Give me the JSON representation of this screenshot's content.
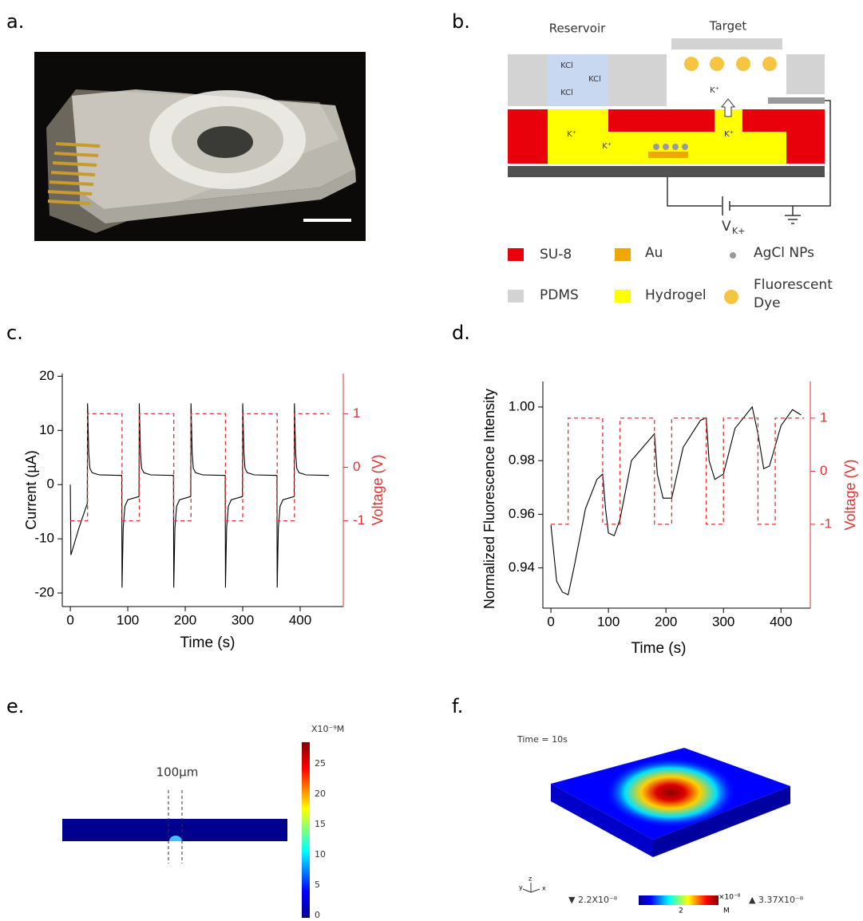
{
  "panel_labels": [
    "a.",
    "b.",
    "c.",
    "d.",
    "e.",
    "f."
  ],
  "diagram": {
    "reservoir": "Reservoir",
    "target": "Target",
    "kcl": [
      "KCl",
      "KCl",
      "KCl"
    ],
    "k_ions": [
      "K⁺",
      "K⁺",
      "K⁺",
      "K⁺"
    ],
    "voltage_symbol": "V",
    "voltage_subscript": "K+",
    "legend": [
      {
        "label": "SU-8",
        "color": "#e8000b"
      },
      {
        "label": "Au",
        "color": "#f0a800"
      },
      {
        "label": "AgCl NPs",
        "color": "#9a9a9a"
      },
      {
        "label": "PDMS",
        "color": "#d3d3d3"
      },
      {
        "label": "Hydrogel",
        "color": "#ffff00"
      },
      {
        "label": [
          "Fluorescent",
          "Dye"
        ],
        "color": "#f5c542"
      }
    ]
  },
  "chart_data": [
    {
      "type": "line",
      "x_label": "Time (s)",
      "y_label": "Current (µA)",
      "y2_label": "Voltage (V)",
      "xlim": [
        -14,
        475
      ],
      "xticks": [
        0,
        100,
        200,
        300,
        400
      ],
      "ylim": [
        -22.5,
        20.5
      ],
      "yticks": [
        -20,
        -10,
        0,
        10,
        20
      ],
      "y2lim": [
        -2.6,
        1.75
      ],
      "y2ticks": [
        -1,
        0,
        1
      ],
      "y2_color": "#e03030",
      "series": [
        {
          "color": "#000000",
          "x": [
            0,
            1,
            15,
            29.5,
            30,
            32,
            34,
            38,
            50,
            89.5,
            90,
            92,
            95,
            100,
            119.5,
            120,
            122,
            124,
            128,
            140,
            179.5,
            180,
            182,
            185,
            190,
            209.5,
            210,
            212,
            214,
            218,
            230,
            269.5,
            270,
            272,
            275,
            280,
            299.5,
            300,
            302,
            304,
            308,
            320,
            359.5,
            360,
            362,
            365,
            370,
            389.5,
            390,
            392,
            394,
            398,
            410,
            450
          ],
          "values": [
            0,
            -13,
            -8,
            -3.5,
            15,
            6,
            3,
            2.2,
            1.8,
            1.7,
            -19,
            -8,
            -4,
            -2.8,
            -2.2,
            15,
            6,
            3,
            2.2,
            1.8,
            1.7,
            -19,
            -8,
            -4,
            -2.8,
            -2.2,
            15,
            6,
            3,
            2.2,
            1.8,
            1.7,
            -19,
            -8,
            -4,
            -2.8,
            -2.2,
            15,
            6,
            3,
            2.2,
            1.8,
            1.7,
            -19,
            -8,
            -4,
            -2.8,
            -2.2,
            15,
            6,
            3,
            2.2,
            1.8,
            1.7
          ]
        },
        {
          "color": "#e03030",
          "dash": true,
          "axis": "y2",
          "x": [
            0,
            30,
            30,
            90,
            90,
            120,
            120,
            180,
            180,
            210,
            210,
            270,
            270,
            300,
            300,
            360,
            360,
            390,
            390,
            450
          ],
          "values": [
            -1,
            -1,
            1,
            1,
            -1,
            -1,
            1,
            1,
            -1,
            -1,
            1,
            1,
            -1,
            -1,
            1,
            1,
            -1,
            -1,
            1,
            1
          ]
        }
      ]
    },
    {
      "type": "line",
      "x_label": "Time (s)",
      "y_label": "Normalized  Fluorescence  Intensity",
      "y2_label": "Voltage (V)",
      "xlim": [
        -14,
        451
      ],
      "xticks": [
        0,
        100,
        200,
        300,
        400
      ],
      "ylim": [
        0.925,
        1.0095
      ],
      "yticks": [
        0.94,
        0.96,
        0.98,
        {
          "value": 1,
          "label": "1.00"
        }
      ],
      "y2lim": [
        -2.58,
        1.69
      ],
      "y2ticks": [
        -1,
        0,
        1
      ],
      "y2_color": "#e03030",
      "series": [
        {
          "color": "#000000",
          "x": [
            0,
            10,
            20,
            30,
            40,
            60,
            80,
            90,
            95,
            100,
            110,
            120,
            140,
            160,
            180,
            185,
            195,
            210,
            230,
            260,
            270,
            275,
            285,
            300,
            320,
            350,
            360,
            370,
            380,
            400,
            420,
            435
          ],
          "values": [
            0.956,
            0.935,
            0.931,
            0.93,
            0.94,
            0.962,
            0.973,
            0.975,
            0.962,
            0.953,
            0.952,
            0.958,
            0.98,
            0.985,
            0.99,
            0.975,
            0.966,
            0.966,
            0.985,
            0.995,
            0.996,
            0.98,
            0.973,
            0.975,
            0.992,
            1.0,
            0.99,
            0.977,
            0.978,
            0.993,
            0.999,
            0.997
          ]
        },
        {
          "color": "#e03030",
          "dash": true,
          "axis": "y2",
          "x": [
            0,
            30,
            30,
            90,
            90,
            120,
            120,
            180,
            180,
            210,
            210,
            270,
            270,
            300,
            300,
            360,
            360,
            390,
            390,
            440
          ],
          "values": [
            -1,
            -1,
            1,
            1,
            -1,
            -1,
            1,
            1,
            -1,
            -1,
            1,
            1,
            -1,
            -1,
            1,
            1,
            -1,
            -1,
            1,
            1
          ]
        }
      ]
    }
  ],
  "simulation_e": {
    "scale_label": "100µm",
    "colorbar_title": "X10⁻⁹M",
    "colorbar_ticks": [
      0,
      5,
      10,
      15,
      20,
      25
    ]
  },
  "simulation_f": {
    "time_label": "Time = 10s",
    "min_label": "▼ 2.2X10⁻⁸",
    "max_label": "▲ 3.37X10⁻⁸",
    "colorbar_unit": "×10⁻⁸",
    "colorbar_unit_2": "M",
    "colorbar_tick": "2",
    "axes": [
      "y",
      "z",
      "x"
    ]
  }
}
